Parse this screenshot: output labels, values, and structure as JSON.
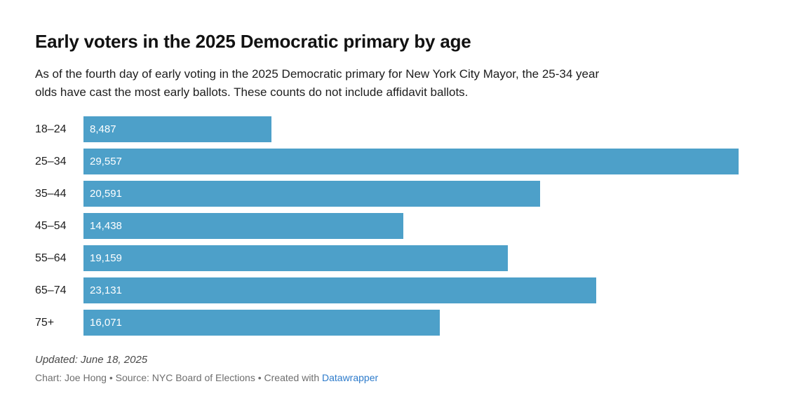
{
  "header": {
    "title": "Early voters in the 2025 Democratic primary by age",
    "subtitle_line1": "As of the fourth day of early voting in the 2025 Democratic primary for New York City Mayor, the 25-34 year",
    "subtitle_line2": "olds have cast the most early ballots. These counts do not include affidavit ballots."
  },
  "chart_data": {
    "type": "bar",
    "orientation": "horizontal",
    "title": "Early voters in the 2025 Democratic primary by age",
    "categories": [
      "18–24",
      "25–34",
      "35–44",
      "45–54",
      "55–64",
      "65–74",
      "75+"
    ],
    "values": [
      8487,
      29557,
      20591,
      14438,
      19159,
      23131,
      16071
    ],
    "value_labels": [
      "8,487",
      "29,557",
      "20,591",
      "14,438",
      "19,159",
      "23,131",
      "16,071"
    ],
    "xlabel": "",
    "ylabel": "",
    "xlim": [
      0,
      30000
    ],
    "grid": false,
    "legend": false,
    "bar_color": "#4da0c9",
    "value_label_color": "#ffffff"
  },
  "footer": {
    "updated": "Updated: June 18, 2025",
    "byline_prefix": "Chart: Joe Hong • Source: NYC Board of Elections • Created with ",
    "link_label": "Datawrapper"
  },
  "colors": {
    "bar": "#4da0c9",
    "link": "#2d7bcb",
    "title_text": "#121212",
    "body_text": "#1d1d1d",
    "updated_text": "#494949",
    "byline_text": "#6e6e6e"
  }
}
